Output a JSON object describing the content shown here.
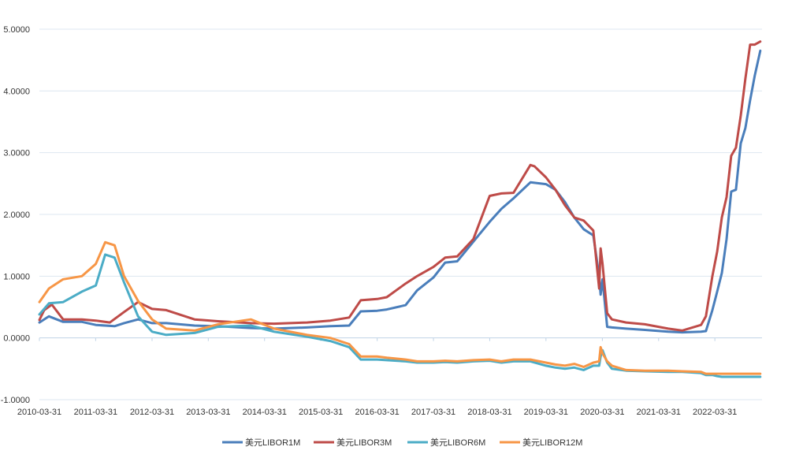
{
  "chart_data": {
    "type": "line",
    "title": "",
    "xlabel": "",
    "ylabel": "",
    "ylim": [
      -1.0,
      5.0
    ],
    "xlim": [
      "2010-03-31",
      "2023-01-31"
    ],
    "grid": "horizontal",
    "legend_position": "bottom",
    "y_ticks": [
      "5.0000",
      "4.0000",
      "3.0000",
      "2.0000",
      "1.0000",
      "0.0000",
      "-1.0000"
    ],
    "x_ticks": [
      "2010-03-31",
      "2011-03-31",
      "2012-03-31",
      "2013-03-31",
      "2014-03-31",
      "2015-03-31",
      "2016-03-31",
      "2017-03-31",
      "2018-03-31",
      "2019-03-31",
      "2020-03-31",
      "2021-03-31",
      "2022-03-31"
    ],
    "series": [
      {
        "name": "美元LIBOR1M",
        "color": "#4a7ebb",
        "x": [
          "2010-03-31",
          "2010-06-01",
          "2010-09-01",
          "2011-01-01",
          "2011-04-01",
          "2011-08-01",
          "2011-10-01",
          "2011-12-31",
          "2012-03-31",
          "2012-07-01",
          "2013-01-01",
          "2013-06-01",
          "2014-01-01",
          "2014-06-01",
          "2015-01-01",
          "2015-06-01",
          "2015-10-01",
          "2015-12-15",
          "2016-03-31",
          "2016-06-01",
          "2016-10-01",
          "2016-12-15",
          "2017-03-31",
          "2017-06-15",
          "2017-09-01",
          "2017-12-15",
          "2018-03-31",
          "2018-06-15",
          "2018-09-01",
          "2018-12-20",
          "2019-03-31",
          "2019-06-01",
          "2019-08-01",
          "2019-10-01",
          "2019-12-01",
          "2020-02-01",
          "2020-03-10",
          "2020-03-20",
          "2020-04-01",
          "2020-05-01",
          "2020-06-01",
          "2020-09-01",
          "2021-01-01",
          "2021-06-01",
          "2021-09-01",
          "2021-12-31",
          "2022-02-01",
          "2022-03-15",
          "2022-04-15",
          "2022-05-15",
          "2022-06-15",
          "2022-07-15",
          "2022-08-15",
          "2022-09-15",
          "2022-10-15",
          "2022-11-15",
          "2022-12-15",
          "2023-01-20"
        ],
        "values": [
          0.25,
          0.35,
          0.26,
          0.26,
          0.21,
          0.19,
          0.24,
          0.3,
          0.24,
          0.24,
          0.2,
          0.19,
          0.16,
          0.15,
          0.17,
          0.19,
          0.2,
          0.43,
          0.44,
          0.46,
          0.53,
          0.77,
          0.98,
          1.22,
          1.24,
          1.56,
          1.88,
          2.09,
          2.26,
          2.52,
          2.49,
          2.4,
          2.2,
          1.95,
          1.76,
          1.66,
          1.0,
          0.7,
          0.95,
          0.18,
          0.17,
          0.15,
          0.13,
          0.1,
          0.09,
          0.1,
          0.11,
          0.45,
          0.75,
          1.05,
          1.6,
          2.37,
          2.4,
          3.15,
          3.4,
          3.85,
          4.25,
          4.65
        ]
      },
      {
        "name": "美元LIBOR3M",
        "color": "#be4b48",
        "x": [
          "2010-03-31",
          "2010-05-01",
          "2010-06-20",
          "2010-09-01",
          "2011-01-01",
          "2011-04-01",
          "2011-07-01",
          "2011-10-01",
          "2011-12-31",
          "2012-03-31",
          "2012-07-01",
          "2013-01-01",
          "2013-06-01",
          "2014-01-01",
          "2014-06-01",
          "2015-01-01",
          "2015-06-01",
          "2015-10-01",
          "2015-12-15",
          "2016-03-31",
          "2016-06-01",
          "2016-10-01",
          "2016-12-15",
          "2017-03-31",
          "2017-06-15",
          "2017-09-01",
          "2017-12-15",
          "2018-03-31",
          "2018-06-15",
          "2018-09-01",
          "2018-12-20",
          "2019-01-15",
          "2019-03-31",
          "2019-06-01",
          "2019-08-01",
          "2019-10-01",
          "2019-12-01",
          "2020-02-01",
          "2020-03-10",
          "2020-03-20",
          "2020-04-01",
          "2020-05-01",
          "2020-06-01",
          "2020-09-01",
          "2021-01-01",
          "2021-06-01",
          "2021-09-01",
          "2021-12-31",
          "2022-02-01",
          "2022-03-15",
          "2022-04-15",
          "2022-05-15",
          "2022-06-15",
          "2022-07-15",
          "2022-08-15",
          "2022-09-15",
          "2022-10-15",
          "2022-11-15",
          "2022-12-15",
          "2023-01-20"
        ],
        "values": [
          0.29,
          0.45,
          0.54,
          0.3,
          0.3,
          0.28,
          0.25,
          0.42,
          0.58,
          0.47,
          0.45,
          0.3,
          0.27,
          0.24,
          0.23,
          0.25,
          0.28,
          0.33,
          0.61,
          0.63,
          0.66,
          0.88,
          1.0,
          1.15,
          1.3,
          1.32,
          1.6,
          2.3,
          2.34,
          2.35,
          2.8,
          2.78,
          2.6,
          2.4,
          2.15,
          1.95,
          1.9,
          1.74,
          0.8,
          1.45,
          1.2,
          0.4,
          0.3,
          0.25,
          0.22,
          0.15,
          0.12,
          0.21,
          0.35,
          1.0,
          1.4,
          1.95,
          2.28,
          2.95,
          3.08,
          3.6,
          4.2,
          4.75,
          4.75,
          4.8
        ]
      },
      {
        "name": "美元LIBOR6M",
        "color": "#4bacc6",
        "x": [
          "2010-03-31",
          "2010-06-01",
          "2010-09-01",
          "2011-01-01",
          "2011-04-01",
          "2011-06-01",
          "2011-08-01",
          "2011-10-01",
          "2011-12-31",
          "2012-03-31",
          "2012-07-01",
          "2013-01-01",
          "2013-06-01",
          "2014-01-01",
          "2014-06-01",
          "2015-01-01",
          "2015-06-01",
          "2015-10-01",
          "2015-12-15",
          "2016-03-31",
          "2016-06-01",
          "2016-10-01",
          "2016-12-15",
          "2017-03-31",
          "2017-06-15",
          "2017-09-01",
          "2017-12-15",
          "2018-03-31",
          "2018-06-15",
          "2018-09-01",
          "2018-12-20",
          "2019-03-31",
          "2019-06-01",
          "2019-08-01",
          "2019-10-01",
          "2019-12-01",
          "2020-02-01",
          "2020-03-10",
          "2020-03-20",
          "2020-04-01",
          "2020-05-01",
          "2020-06-01",
          "2020-09-01",
          "2021-01-01",
          "2021-06-01",
          "2021-09-01",
          "2021-12-31",
          "2022-02-01",
          "2022-03-15",
          "2022-04-15",
          "2022-05-15",
          "2022-06-15",
          "2022-07-15",
          "2022-08-15",
          "2022-09-15",
          "2022-10-15",
          "2022-11-15",
          "2022-12-15",
          "2023-01-20"
        ],
        "values": [
          0.38,
          0.56,
          0.58,
          0.75,
          0.85,
          1.35,
          1.3,
          0.9,
          0.35,
          0.1,
          0.05,
          0.08,
          0.18,
          0.2,
          0.1,
          0.02,
          -0.05,
          -0.15,
          -0.35,
          -0.35,
          -0.36,
          -0.38,
          -0.4,
          -0.4,
          -0.39,
          -0.4,
          -0.38,
          -0.37,
          -0.4,
          -0.38,
          -0.38,
          -0.45,
          -0.48,
          -0.5,
          -0.48,
          -0.52,
          -0.45,
          -0.45,
          -0.3,
          -0.2,
          -0.4,
          -0.5,
          -0.53,
          -0.54,
          -0.55,
          -0.55,
          -0.57,
          -0.6,
          -0.6,
          -0.62,
          -0.63,
          -0.63,
          -0.63,
          -0.63,
          -0.63,
          -0.63,
          -0.63,
          -0.63,
          -0.63
        ]
      },
      {
        "name": "美元LIBOR12M",
        "color": "#f79646",
        "x": [
          "2010-03-31",
          "2010-06-01",
          "2010-09-01",
          "2011-01-01",
          "2011-04-01",
          "2011-06-01",
          "2011-08-01",
          "2011-10-01",
          "2011-12-31",
          "2012-03-31",
          "2012-07-01",
          "2013-01-01",
          "2013-06-01",
          "2014-01-01",
          "2014-06-01",
          "2015-01-01",
          "2015-06-01",
          "2015-10-01",
          "2015-12-15",
          "2016-03-31",
          "2016-06-01",
          "2016-10-01",
          "2016-12-15",
          "2017-03-31",
          "2017-06-15",
          "2017-09-01",
          "2017-12-15",
          "2018-03-31",
          "2018-06-15",
          "2018-09-01",
          "2018-12-20",
          "2019-03-31",
          "2019-06-01",
          "2019-08-01",
          "2019-10-01",
          "2019-12-01",
          "2020-02-01",
          "2020-03-10",
          "2020-03-20",
          "2020-04-01",
          "2020-05-01",
          "2020-06-01",
          "2020-09-01",
          "2021-01-01",
          "2021-06-01",
          "2021-09-01",
          "2021-12-31",
          "2022-02-01",
          "2022-03-15",
          "2022-04-15",
          "2022-05-15",
          "2022-06-15",
          "2022-07-15",
          "2022-08-15",
          "2022-09-15",
          "2022-10-15",
          "2022-11-15",
          "2022-12-15",
          "2023-01-20"
        ],
        "values": [
          0.58,
          0.8,
          0.95,
          1.0,
          1.2,
          1.55,
          1.5,
          1.0,
          0.6,
          0.3,
          0.15,
          0.12,
          0.22,
          0.3,
          0.15,
          0.05,
          0.0,
          -0.1,
          -0.3,
          -0.3,
          -0.32,
          -0.35,
          -0.38,
          -0.38,
          -0.37,
          -0.38,
          -0.36,
          -0.35,
          -0.38,
          -0.35,
          -0.35,
          -0.4,
          -0.43,
          -0.45,
          -0.42,
          -0.47,
          -0.4,
          -0.38,
          -0.15,
          -0.25,
          -0.38,
          -0.45,
          -0.52,
          -0.53,
          -0.53,
          -0.54,
          -0.55,
          -0.58,
          -0.58,
          -0.58,
          -0.58,
          -0.58,
          -0.58,
          -0.58,
          -0.58,
          -0.58,
          -0.58,
          -0.58,
          -0.58
        ]
      }
    ]
  }
}
